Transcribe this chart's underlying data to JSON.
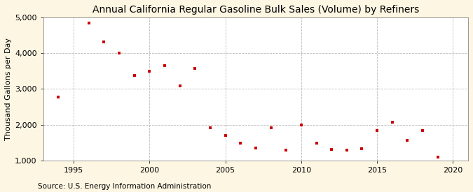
{
  "title": "Annual California Regular Gasoline Bulk Sales (Volume) by Refiners",
  "ylabel": "Thousand Gallons per Day",
  "source": "Source: U.S. Energy Information Administration",
  "background_color": "#fdf6e3",
  "plot_bg_color": "#ffffff",
  "marker_color": "#cc0000",
  "years": [
    1994,
    1996,
    1997,
    1998,
    1999,
    2000,
    2001,
    2002,
    2003,
    2004,
    2005,
    2006,
    2007,
    2008,
    2009,
    2010,
    2011,
    2012,
    2013,
    2014,
    2015,
    2016,
    2017,
    2018,
    2019
  ],
  "values": [
    2780,
    4850,
    4320,
    4010,
    3370,
    3490,
    3650,
    3090,
    3580,
    1920,
    1700,
    1480,
    1340,
    1920,
    1280,
    2000,
    1490,
    1310,
    1290,
    1330,
    1840,
    2060,
    1570,
    1840,
    1090
  ],
  "ylim": [
    1000,
    5000
  ],
  "yticks": [
    1000,
    2000,
    3000,
    4000,
    5000
  ],
  "xlim": [
    1993.0,
    2021.0
  ],
  "xticks": [
    1995,
    2000,
    2005,
    2010,
    2015,
    2020
  ],
  "grid_color": "#aaaaaa",
  "title_fontsize": 10,
  "label_fontsize": 8,
  "tick_fontsize": 8,
  "source_fontsize": 7.5
}
